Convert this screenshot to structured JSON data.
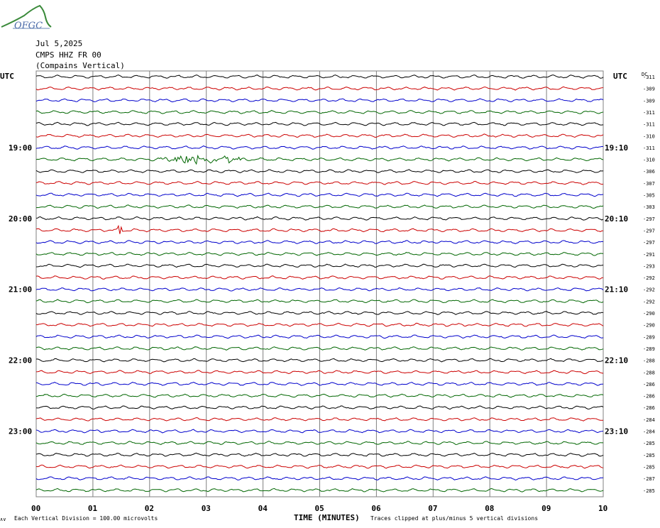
{
  "logo": {
    "text": "OFGC",
    "icon": "wave-logo-icon"
  },
  "header": {
    "date": "Jul 5,2025",
    "station": "CMPS HHZ FR 00",
    "location": "(Compains Vertical)"
  },
  "left_utc_label": "UTC",
  "right_utc_label": "UTC",
  "dc_label": "DC",
  "colors": {
    "black": "#000000",
    "red": "#cc0000",
    "blue": "#0000cc",
    "green": "#006600",
    "grid": "#808080"
  },
  "chart_data": {
    "type": "line",
    "title": "CMPS HHZ FR 00",
    "xlabel": "TIME (MINUTES)",
    "xlim": [
      0,
      10
    ],
    "x_ticks": [
      "00",
      "01",
      "02",
      "03",
      "04",
      "05",
      "06",
      "07",
      "08",
      "09",
      "10"
    ],
    "trace_count": 36,
    "trace_colors": [
      "black",
      "red",
      "blue",
      "green"
    ],
    "left_hour_labels": [
      {
        "trace": 6,
        "label": "19:00"
      },
      {
        "trace": 12,
        "label": "20:00"
      },
      {
        "trace": 18,
        "label": "21:00"
      },
      {
        "trace": 24,
        "label": "22:00"
      },
      {
        "trace": 30,
        "label": "23:00"
      }
    ],
    "right_hour_labels": [
      {
        "trace": 6,
        "label": "19:10"
      },
      {
        "trace": 12,
        "label": "20:10"
      },
      {
        "trace": 18,
        "label": "21:10"
      },
      {
        "trace": 24,
        "label": "22:10"
      },
      {
        "trace": 30,
        "label": "23:10"
      }
    ],
    "dc_offsets": [
      "-311",
      "-309",
      "-309",
      "-311",
      "-311",
      "-310",
      "-311",
      "-310",
      "-306",
      "-307",
      "-305",
      "-303",
      "-297",
      "-297",
      "-297",
      "-291",
      "-293",
      "-292",
      "-292",
      "-292",
      "-290",
      "-290",
      "-289",
      "-289",
      "-288",
      "-288",
      "-286",
      "-286",
      "-286",
      "-284",
      "-284",
      "-285",
      "-285",
      "-285",
      "-287",
      "-285"
    ],
    "events": [
      {
        "trace": 7,
        "start_min": 2.1,
        "end_min": 3.6,
        "peak_min": 2.8,
        "amplitude": "large"
      },
      {
        "trace": 13,
        "start_min": 1.45,
        "end_min": 1.5,
        "amplitude": "small"
      }
    ]
  },
  "footer": {
    "scale_mark": "∧∨",
    "division_note": "Each Vertical Division =  100.00 microvolts",
    "clip_note": "Traces clipped at plus/minus 5 vertical divisions"
  }
}
